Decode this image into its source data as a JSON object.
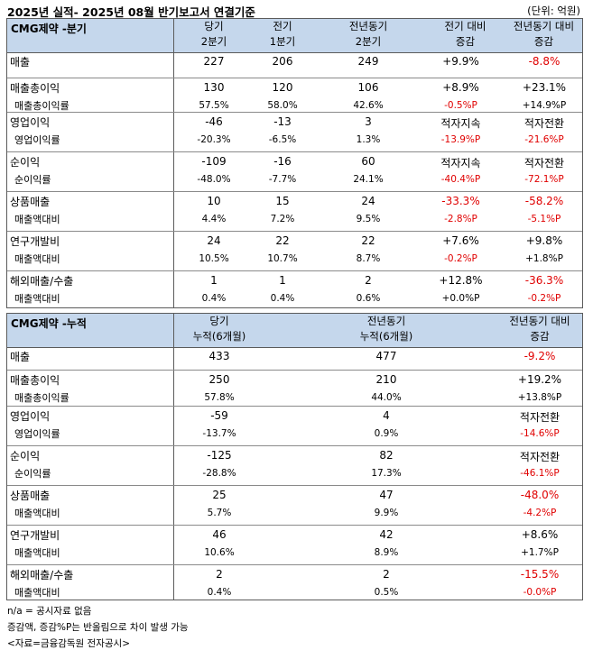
{
  "title": "2025년 실적- 2025년 08월 반기보고서 연결기준",
  "unit": "(단위: 억원)",
  "quarter_table": {
    "name": "CMG제약 -분기",
    "headers": [
      [
        "당기",
        "2분기"
      ],
      [
        "전기",
        "1분기"
      ],
      [
        "전년동기",
        "2분기"
      ],
      [
        "전기 대비",
        "증감"
      ],
      [
        "전년동기 대비",
        "증감"
      ]
    ],
    "groups": [
      {
        "rows": [
          {
            "label": "매출",
            "values": [
              "227",
              "206",
              "249",
              "+9.9%",
              "-8.8%"
            ]
          }
        ]
      },
      {
        "rows": [
          {
            "label": "매출총이익",
            "values": [
              "130",
              "120",
              "106",
              "+8.9%",
              "+23.1%"
            ]
          },
          {
            "label": "매출총이익률",
            "values": [
              "57.5%",
              "58.0%",
              "42.6%",
              "-0.5%P",
              "+14.9%P"
            ]
          }
        ]
      },
      {
        "rows": [
          {
            "label": "영업이익",
            "values": [
              "-46",
              "-13",
              "3",
              "적자지속",
              "적자전환"
            ]
          },
          {
            "label": "영업이익률",
            "values": [
              "-20.3%",
              "-6.5%",
              "1.3%",
              "-13.9%P",
              "-21.6%P"
            ]
          }
        ]
      },
      {
        "rows": [
          {
            "label": "순이익",
            "values": [
              "-109",
              "-16",
              "60",
              "적자지속",
              "적자전환"
            ]
          },
          {
            "label": "순이익률",
            "values": [
              "-48.0%",
              "-7.7%",
              "24.1%",
              "-40.4%P",
              "-72.1%P"
            ]
          }
        ]
      },
      {
        "rows": [
          {
            "label": "상품매출",
            "values": [
              "10",
              "15",
              "24",
              "-33.3%",
              "-58.2%"
            ]
          },
          {
            "label": "매출액대비",
            "values": [
              "4.4%",
              "7.2%",
              "9.5%",
              "-2.8%P",
              "-5.1%P"
            ]
          }
        ]
      },
      {
        "rows": [
          {
            "label": "연구개발비",
            "values": [
              "24",
              "22",
              "22",
              "+7.6%",
              "+9.8%"
            ]
          },
          {
            "label": "매출액대비",
            "values": [
              "10.5%",
              "10.7%",
              "8.7%",
              "-0.2%P",
              "+1.8%P"
            ]
          }
        ]
      },
      {
        "rows": [
          {
            "label": "해외매출/수출",
            "values": [
              "1",
              "1",
              "2",
              "+12.8%",
              "-36.3%"
            ]
          },
          {
            "label": "매출액대비",
            "values": [
              "0.4%",
              "0.4%",
              "0.6%",
              "+0.0%P",
              "-0.2%P"
            ]
          }
        ]
      }
    ]
  },
  "cumulative_table": {
    "name": "CMG제약 -누적",
    "headers": [
      [
        "당기",
        "누적(6개월)"
      ],
      [
        "전년동기",
        "누적(6개월)"
      ],
      [
        "전년동기 대비",
        "증감"
      ]
    ],
    "groups": [
      {
        "rows": [
          {
            "label": "매출",
            "values": [
              "433",
              "477",
              "-9.2%"
            ]
          }
        ]
      },
      {
        "rows": [
          {
            "label": "매출총이익",
            "values": [
              "250",
              "210",
              "+19.2%"
            ]
          },
          {
            "label": "매출총이익률",
            "values": [
              "57.8%",
              "44.0%",
              "+13.8%P"
            ]
          }
        ]
      },
      {
        "rows": [
          {
            "label": "영업이익",
            "values": [
              "-59",
              "4",
              "적자전환"
            ]
          },
          {
            "label": "영업이익률",
            "values": [
              "-13.7%",
              "0.9%",
              "-14.6%P"
            ]
          }
        ]
      },
      {
        "rows": [
          {
            "label": "순이익",
            "values": [
              "-125",
              "82",
              "적자전환"
            ]
          },
          {
            "label": "순이익률",
            "values": [
              "-28.8%",
              "17.3%",
              "-46.1%P"
            ]
          }
        ]
      },
      {
        "rows": [
          {
            "label": "상품매출",
            "values": [
              "25",
              "47",
              "-48.0%"
            ]
          },
          {
            "label": "매출액대비",
            "values": [
              "5.7%",
              "9.9%",
              "-4.2%P"
            ]
          }
        ]
      },
      {
        "rows": [
          {
            "label": "연구개발비",
            "values": [
              "46",
              "42",
              "+8.6%"
            ]
          },
          {
            "label": "매출액대비",
            "values": [
              "10.6%",
              "8.9%",
              "+1.7%P"
            ]
          }
        ]
      },
      {
        "rows": [
          {
            "label": "해외매출/수출",
            "values": [
              "2",
              "2",
              "-15.5%"
            ]
          },
          {
            "label": "매출액대비",
            "values": [
              "0.4%",
              "0.5%",
              "-0.0%P"
            ]
          }
        ]
      }
    ]
  },
  "notes": [
    "n/a = 공시자료 없음",
    "증감액, 증감%P는 반올림으로 차이 발생 가능",
    "<자료=금융감독원 전자공시>"
  ],
  "colors": {
    "header_bg": "#c5d7ec",
    "negative": "#e00000"
  }
}
